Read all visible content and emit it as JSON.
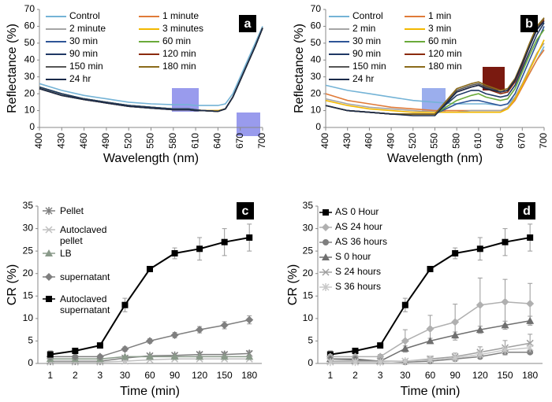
{
  "chart_data": [
    {
      "type": "line",
      "label": "a",
      "x_label": "Wavelength (nm)",
      "y_label": "Reflectance (%)",
      "x": [
        400,
        430,
        460,
        490,
        520,
        550,
        580,
        600,
        610,
        620,
        640,
        650,
        660,
        670,
        680,
        690,
        700
      ],
      "xlim": [
        400,
        700
      ],
      "xticks": [
        400,
        430,
        460,
        490,
        520,
        550,
        580,
        610,
        640,
        670,
        700
      ],
      "ylim": [
        0,
        70
      ],
      "yticks": [
        0,
        10,
        20,
        30,
        40,
        50,
        60,
        70
      ],
      "legend": "upper left",
      "series": [
        {
          "name": "Control",
          "color": "#74b3d6",
          "values": [
            26,
            22,
            19,
            17,
            15,
            14,
            13.5,
            13.5,
            13,
            13,
            13,
            14,
            20,
            30,
            40,
            50,
            60
          ]
        },
        {
          "name": "1 minute",
          "color": "#e07b39",
          "values": [
            24,
            20,
            17,
            15,
            13,
            12,
            11,
            11,
            10.5,
            10,
            10,
            11,
            18,
            28,
            38,
            48,
            59
          ]
        },
        {
          "name": "2 minute",
          "color": "#a5a5a5",
          "values": [
            24,
            20,
            17,
            15,
            13,
            12,
            11,
            11,
            10.5,
            10,
            10,
            11,
            18,
            28,
            38,
            48,
            59
          ]
        },
        {
          "name": "3 minutes",
          "color": "#f2b800",
          "values": [
            24,
            20,
            17,
            15,
            13,
            12,
            11,
            11,
            10.5,
            10,
            10,
            11,
            18,
            28,
            38,
            48,
            59
          ]
        },
        {
          "name": "30 min",
          "color": "#2e5597",
          "values": [
            24,
            20,
            17,
            15,
            13,
            12,
            11,
            11,
            10.5,
            10,
            9.5,
            11,
            18,
            28,
            38,
            48,
            59
          ]
        },
        {
          "name": "60 min",
          "color": "#6aaa3a",
          "values": [
            24,
            20,
            17,
            15,
            13,
            12,
            11,
            11,
            10.5,
            10,
            9.5,
            11,
            18,
            28,
            38,
            48,
            59
          ]
        },
        {
          "name": "90 min",
          "color": "#1f3864",
          "values": [
            24,
            20,
            17,
            15,
            13,
            12,
            11,
            11,
            10.5,
            10,
            9.5,
            11,
            18,
            28,
            38,
            48,
            59
          ]
        },
        {
          "name": "120 min",
          "color": "#8b2a0a",
          "values": [
            23,
            19,
            16.5,
            14.5,
            12.5,
            11.5,
            10.5,
            10.5,
            10,
            10,
            9.5,
            11,
            18,
            28,
            38,
            48,
            59
          ]
        },
        {
          "name": "150 min",
          "color": "#555555",
          "values": [
            23,
            19,
            16.5,
            14.5,
            12.5,
            11.5,
            10.5,
            10.5,
            10,
            10,
            9.5,
            11,
            18,
            28,
            38,
            48,
            59
          ]
        },
        {
          "name": "180 min",
          "color": "#8a6a1a",
          "values": [
            23,
            19,
            16.5,
            14.5,
            12.5,
            11.5,
            10.5,
            10.5,
            10,
            10,
            9.5,
            11,
            18,
            28,
            38,
            48,
            59
          ]
        },
        {
          "name": "24 hr",
          "color": "#1a2a4a",
          "values": [
            23,
            19,
            16.5,
            14.5,
            12.5,
            11.5,
            10.5,
            10.5,
            10,
            10,
            9.5,
            11,
            18,
            28,
            38,
            48,
            59
          ]
        }
      ]
    },
    {
      "type": "line",
      "label": "b",
      "x_label": "Wavelength (nm)",
      "y_label": "Reflectance (%)",
      "x": [
        400,
        430,
        460,
        490,
        520,
        550,
        580,
        600,
        610,
        620,
        640,
        650,
        660,
        670,
        680,
        690,
        700
      ],
      "xlim": [
        400,
        700
      ],
      "xticks": [
        400,
        430,
        460,
        490,
        520,
        550,
        580,
        610,
        640,
        670,
        700
      ],
      "ylim": [
        0,
        70
      ],
      "yticks": [
        0,
        10,
        20,
        30,
        40,
        50,
        60,
        70
      ],
      "legend": "upper left",
      "series": [
        {
          "name": "Control",
          "color": "#74b3d6",
          "values": [
            25,
            22,
            20,
            18,
            16,
            15,
            14,
            14,
            14,
            14,
            13,
            14,
            18,
            25,
            32,
            40,
            48
          ]
        },
        {
          "name": "1 min",
          "color": "#e07b39",
          "values": [
            20,
            16,
            14,
            12,
            11,
            10,
            10,
            10,
            10,
            10,
            10,
            11,
            16,
            24,
            32,
            40,
            46
          ]
        },
        {
          "name": "2 min",
          "color": "#a5a5a5",
          "values": [
            17,
            14,
            12,
            11,
            10,
            9,
            9,
            10,
            10,
            10,
            10,
            12,
            18,
            26,
            35,
            44,
            50
          ]
        },
        {
          "name": "3 min",
          "color": "#f2b800",
          "values": [
            16,
            13,
            11,
            10,
            9,
            9,
            9,
            9,
            9,
            9,
            9,
            11,
            17,
            25,
            34,
            43,
            52
          ]
        },
        {
          "name": "30 min",
          "color": "#2e5597",
          "values": [
            13,
            10,
            9,
            8,
            8,
            8,
            14,
            16,
            16,
            15,
            13,
            14,
            20,
            30,
            40,
            50,
            60
          ]
        },
        {
          "name": "60 min",
          "color": "#6aaa3a",
          "values": [
            13,
            10,
            9,
            8,
            8,
            8,
            16,
            19,
            20,
            18,
            16,
            17,
            23,
            33,
            43,
            52,
            58
          ]
        },
        {
          "name": "90 min",
          "color": "#1f3864",
          "values": [
            13,
            10,
            9,
            8,
            8,
            8,
            19,
            22,
            22,
            20,
            18,
            19,
            25,
            35,
            45,
            55,
            62
          ]
        },
        {
          "name": "120 min",
          "color": "#8b2a0a",
          "values": [
            13,
            10,
            9,
            8,
            8,
            8,
            21,
            24,
            25,
            23,
            20,
            21,
            27,
            37,
            48,
            58,
            64
          ]
        },
        {
          "name": "150 min",
          "color": "#555555",
          "values": [
            13,
            10,
            9,
            8,
            8,
            8,
            22,
            25,
            26,
            24,
            21,
            22,
            28,
            38,
            49,
            59,
            65
          ]
        },
        {
          "name": "180 min",
          "color": "#8a6a1a",
          "values": [
            13,
            10,
            9,
            8,
            8,
            8,
            23,
            26,
            27,
            25,
            22,
            23,
            29,
            39,
            50,
            60,
            65
          ]
        },
        {
          "name": "24 hr",
          "color": "#1a2a4a",
          "values": [
            13,
            10,
            9,
            8,
            7,
            7,
            21,
            24,
            25,
            23,
            21,
            22,
            28,
            38,
            48,
            58,
            63
          ]
        }
      ]
    },
    {
      "type": "line",
      "label": "c",
      "x_label": "Time (min)",
      "y_label": "CR (%)",
      "categories": [
        "1",
        "2",
        "3",
        "30",
        "60",
        "90",
        "120",
        "150",
        "180"
      ],
      "ylim": [
        0,
        35
      ],
      "yticks": [
        0,
        5,
        10,
        15,
        20,
        25,
        30,
        35
      ],
      "legend": "upper left",
      "series": [
        {
          "name": "Pellet",
          "color": "#7f7f7f",
          "marker": "asterisk",
          "values": [
            0.5,
            0.5,
            0.5,
            1.2,
            1.7,
            1.8,
            2,
            2,
            2.2
          ],
          "errors": [
            0.3,
            0.3,
            0.3,
            0.4,
            0.4,
            0.4,
            0.5,
            0.5,
            0.6
          ]
        },
        {
          "name": "Autoclaved pellet",
          "color": "#c0c0c0",
          "marker": "x",
          "values": [
            0.3,
            0.3,
            0.3,
            0.5,
            0.8,
            1,
            1,
            1,
            1
          ]
        },
        {
          "name": "LB",
          "color": "#8a9a8a",
          "marker": "triangle",
          "values": [
            1,
            1,
            1,
            1.5,
            1.5,
            1.5,
            1.5,
            1.5,
            1.5
          ]
        },
        {
          "name": "supernatant",
          "color": "#7f7f7f",
          "marker": "diamond",
          "values": [
            1.5,
            1.5,
            1.5,
            3.2,
            5,
            6.3,
            7.5,
            8.5,
            9.7
          ],
          "errors": [
            0.4,
            0.4,
            0.4,
            0.5,
            0.5,
            0.6,
            0.7,
            0.8,
            0.9
          ]
        },
        {
          "name": "Autoclaved supernatant",
          "color": "#000000",
          "marker": "square",
          "values": [
            2,
            2.8,
            4,
            13,
            21,
            24.5,
            25.5,
            27,
            28
          ],
          "errors": [
            0.8,
            0.5,
            0.5,
            1.5,
            0.5,
            1.2,
            2.5,
            3,
            3
          ]
        }
      ]
    },
    {
      "type": "line",
      "label": "d",
      "x_label": "Time (min)",
      "y_label": "CR (%)",
      "categories": [
        "1",
        "2",
        "3",
        "30",
        "60",
        "90",
        "120",
        "150",
        "180"
      ],
      "ylim": [
        0,
        35
      ],
      "yticks": [
        0,
        5,
        10,
        15,
        20,
        25,
        30,
        35
      ],
      "legend": "upper left",
      "series": [
        {
          "name": "AS 0 Hour",
          "color": "#000000",
          "marker": "square",
          "values": [
            2,
            2.8,
            4,
            13,
            21,
            24.5,
            25.5,
            27,
            28
          ],
          "errors": [
            0.8,
            0.5,
            0.5,
            1.5,
            0.5,
            1.2,
            2.5,
            3,
            3
          ]
        },
        {
          "name": "AS 24 hour",
          "color": "#b0b0b0",
          "marker": "diamond",
          "values": [
            1.5,
            1.5,
            1.5,
            5,
            7.7,
            9.2,
            13,
            13.7,
            13.3
          ],
          "errors": [
            0.5,
            0.5,
            0.5,
            2.5,
            3,
            4,
            6,
            5,
            4.5
          ]
        },
        {
          "name": "AS 36 hours",
          "color": "#7f7f7f",
          "marker": "circle",
          "values": [
            1,
            1,
            0.5,
            0.3,
            0.5,
            1,
            1.5,
            2.5,
            2.5
          ]
        },
        {
          "name": "S 0 hour",
          "color": "#6f6f6f",
          "marker": "triangle",
          "values": [
            1,
            0.8,
            0.5,
            3.3,
            5,
            6.3,
            7.5,
            8.5,
            9.5
          ],
          "errors": [
            0.4,
            0.4,
            0.4,
            0.6,
            0.6,
            0.7,
            0.8,
            0.9,
            1
          ]
        },
        {
          "name": "S 24 hours",
          "color": "#a0a0a0",
          "marker": "x",
          "values": [
            0.5,
            0.5,
            0.5,
            0.5,
            1,
            1.5,
            2.5,
            3.5,
            4.5
          ],
          "errors": [
            0.3,
            0.3,
            0.3,
            0.4,
            0.6,
            0.8,
            1.2,
            1.6,
            2
          ]
        },
        {
          "name": "S 36 hours",
          "color": "#c8c8c8",
          "marker": "asterisk",
          "values": [
            0.3,
            0.3,
            0.3,
            0.5,
            0.8,
            1.2,
            2,
            3,
            3.5
          ]
        }
      ]
    }
  ]
}
